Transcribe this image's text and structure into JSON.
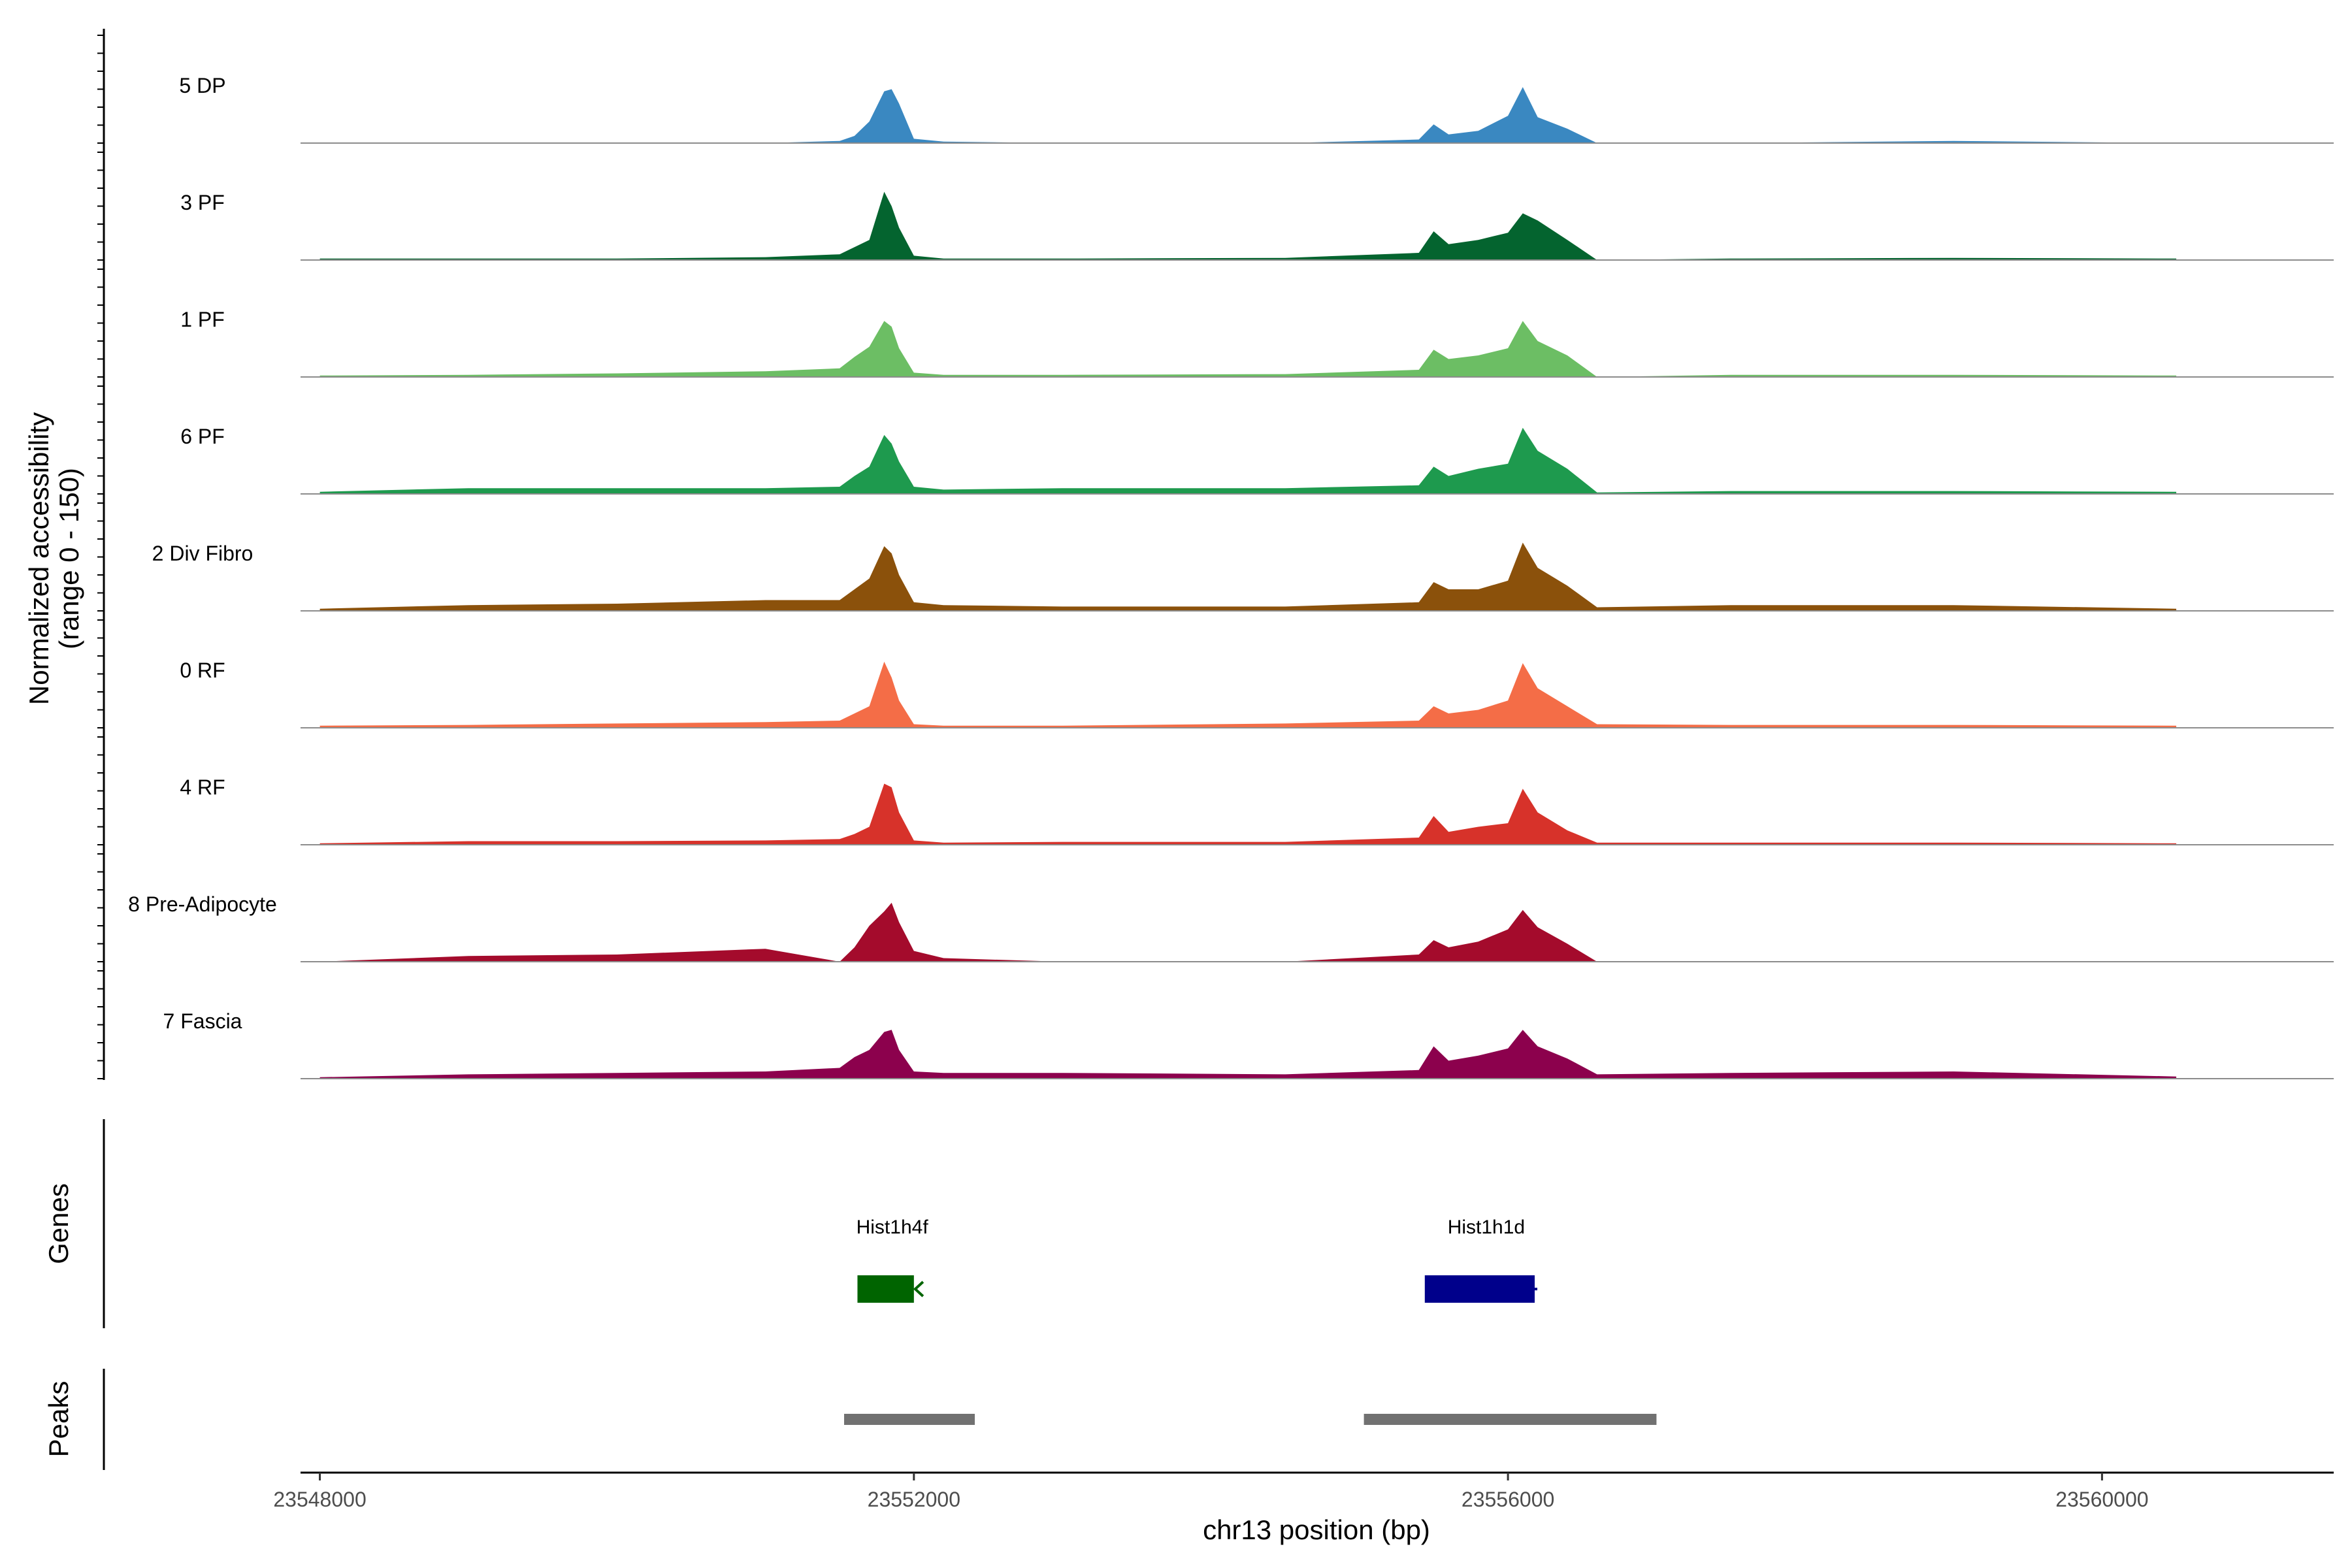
{
  "chart_data": {
    "type": "area",
    "title": "",
    "ylabel_line1": "Normalized accessibility",
    "ylabel_line2": "(range 0 - 150)",
    "y_range": [
      0,
      150
    ],
    "xlabel": "chr13 position (bp)",
    "x_range": [
      23547870,
      23561560
    ],
    "x_ticks": [
      {
        "value": 23548000,
        "label": "23548000"
      },
      {
        "value": 23552000,
        "label": "23552000"
      },
      {
        "value": 23556000,
        "label": "23556000"
      },
      {
        "value": 23560000,
        "label": "23560000"
      }
    ],
    "x_knots": [
      23548000,
      23549000,
      23550000,
      23551000,
      23551500,
      23551600,
      23551700,
      23551800,
      23551850,
      23551900,
      23552000,
      23552200,
      23553000,
      23554500,
      23555400,
      23555500,
      23555600,
      23555800,
      23556000,
      23556100,
      23556200,
      23556400,
      23556600,
      23557500,
      23559000,
      23560500
    ],
    "series": [
      {
        "name": "5 DP",
        "color": "#3a88c1",
        "values": [
          0,
          0,
          0,
          0,
          3,
          10,
          30,
          72,
          75,
          55,
          6,
          2,
          0,
          0,
          5,
          26,
          12,
          17,
          38,
          78,
          36,
          20,
          0,
          0,
          3,
          0
        ]
      },
      {
        "name": "3 PF",
        "color": "#04642f",
        "values": [
          2,
          2,
          2,
          4,
          8,
          18,
          28,
          95,
          75,
          45,
          6,
          2,
          2,
          3,
          10,
          40,
          22,
          28,
          38,
          65,
          55,
          28,
          0,
          2,
          3,
          2
        ]
      },
      {
        "name": "1 PF",
        "color": "#6cbe64",
        "values": [
          2,
          3,
          5,
          8,
          12,
          28,
          42,
          78,
          70,
          40,
          6,
          3,
          3,
          4,
          10,
          38,
          25,
          30,
          40,
          78,
          50,
          30,
          0,
          3,
          3,
          2
        ]
      },
      {
        "name": "6 PF",
        "color": "#1e9a4e",
        "values": [
          3,
          8,
          8,
          8,
          10,
          25,
          38,
          82,
          70,
          45,
          10,
          6,
          8,
          8,
          12,
          38,
          25,
          35,
          42,
          92,
          60,
          35,
          2,
          4,
          4,
          3
        ]
      },
      {
        "name": "2 Div Fibro",
        "color": "#8b510b",
        "values": [
          3,
          8,
          10,
          15,
          15,
          30,
          45,
          90,
          80,
          50,
          12,
          8,
          6,
          6,
          12,
          40,
          30,
          30,
          42,
          95,
          60,
          35,
          5,
          8,
          8,
          3
        ]
      },
      {
        "name": "0 RF",
        "color": "#f46d47",
        "values": [
          3,
          4,
          6,
          8,
          10,
          20,
          30,
          92,
          70,
          38,
          5,
          3,
          3,
          6,
          10,
          30,
          20,
          25,
          38,
          90,
          55,
          30,
          5,
          4,
          4,
          3
        ]
      },
      {
        "name": "4 RF",
        "color": "#d7322a",
        "values": [
          2,
          5,
          5,
          6,
          8,
          15,
          25,
          85,
          80,
          45,
          6,
          3,
          4,
          4,
          10,
          40,
          18,
          25,
          30,
          78,
          45,
          20,
          3,
          3,
          3,
          2
        ]
      },
      {
        "name": "8 Pre-Adipocyte",
        "color": "#a40b2c",
        "values": [
          0,
          8,
          10,
          18,
          0,
          20,
          50,
          70,
          82,
          55,
          15,
          5,
          0,
          0,
          10,
          30,
          20,
          28,
          45,
          72,
          48,
          25,
          0,
          0,
          0,
          0
        ]
      },
      {
        "name": "7 Fascia",
        "color": "#8c014d",
        "values": [
          2,
          6,
          8,
          10,
          15,
          30,
          40,
          65,
          68,
          40,
          10,
          8,
          8,
          6,
          12,
          45,
          25,
          32,
          42,
          68,
          45,
          28,
          6,
          8,
          10,
          3
        ]
      }
    ],
    "genes_panel_label": "Genes",
    "genes": [
      {
        "name": "Hist1h4f",
        "start": 23551620,
        "end": 23552000,
        "strand": "-",
        "color": "#006400"
      },
      {
        "name": "Hist1h1d",
        "start": 23555440,
        "end": 23556180,
        "strand": "+",
        "color": "#00008b"
      }
    ],
    "peaks_panel_label": "Peaks",
    "peaks": [
      {
        "start": 23551530,
        "end": 23552410
      },
      {
        "start": 23555030,
        "end": 23557000
      }
    ]
  }
}
